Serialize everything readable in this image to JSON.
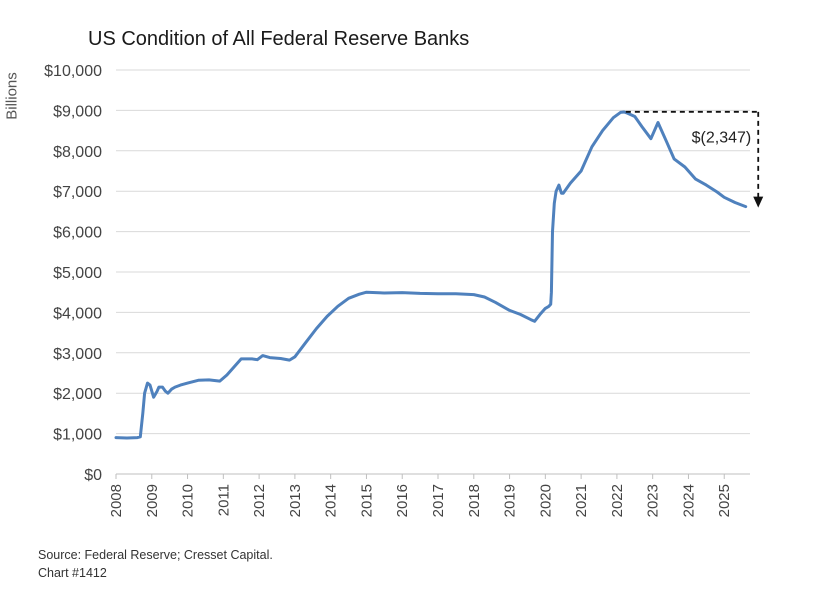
{
  "chart_data": {
    "type": "line",
    "title": "US Condition of All Federal Reserve Banks",
    "ylabel": "Billions",
    "xlabel": "",
    "ylim": [
      0,
      10000
    ],
    "xlim": [
      2008,
      2025.7
    ],
    "grid": true,
    "y_ticks": [
      0,
      1000,
      2000,
      3000,
      4000,
      5000,
      6000,
      7000,
      8000,
      9000,
      10000
    ],
    "y_tick_labels": [
      "$0",
      "$1,000",
      "$2,000",
      "$3,000",
      "$4,000",
      "$5,000",
      "$6,000",
      "$7,000",
      "$8,000",
      "$9,000",
      "$10,000"
    ],
    "x_ticks": [
      2008,
      2009,
      2010,
      2011,
      2012,
      2013,
      2014,
      2015,
      2016,
      2017,
      2018,
      2019,
      2020,
      2021,
      2022,
      2023,
      2024,
      2025
    ],
    "x_tick_labels": [
      "2008",
      "2009",
      "2010",
      "2011",
      "2012",
      "2013",
      "2014",
      "2015",
      "2016",
      "2017",
      "2018",
      "2019",
      "2020",
      "2021",
      "2022",
      "2023",
      "2024",
      "2025"
    ],
    "series": [
      {
        "color": "#4f81bd",
        "x": [
          2008.0,
          2008.3,
          2008.6,
          2008.68,
          2008.75,
          2008.8,
          2008.88,
          2008.95,
          2009.05,
          2009.15,
          2009.2,
          2009.3,
          2009.38,
          2009.45,
          2009.55,
          2009.65,
          2009.8,
          2010.0,
          2010.3,
          2010.6,
          2010.9,
          2011.1,
          2011.3,
          2011.5,
          2011.8,
          2011.95,
          2012.1,
          2012.3,
          2012.6,
          2012.85,
          2013.0,
          2013.3,
          2013.6,
          2013.9,
          2014.2,
          2014.5,
          2014.8,
          2015.0,
          2015.5,
          2016.0,
          2016.5,
          2017.0,
          2017.5,
          2018.0,
          2018.3,
          2018.6,
          2019.0,
          2019.3,
          2019.6,
          2019.7,
          2019.85,
          2020.0,
          2020.1,
          2020.15,
          2020.17,
          2020.2,
          2020.25,
          2020.3,
          2020.38,
          2020.45,
          2020.5,
          2020.7,
          2021.0,
          2021.3,
          2021.6,
          2021.9,
          2022.1,
          2022.2,
          2022.3,
          2022.5,
          2022.7,
          2022.95,
          2023.15,
          2023.2,
          2023.25,
          2023.4,
          2023.6,
          2023.9,
          2024.2,
          2024.5,
          2024.8,
          2025.0,
          2025.3,
          2025.6
        ],
        "y": [
          900,
          890,
          900,
          920,
          1500,
          2000,
          2250,
          2200,
          1900,
          2050,
          2150,
          2150,
          2050,
          2000,
          2100,
          2150,
          2200,
          2250,
          2320,
          2330,
          2300,
          2450,
          2650,
          2850,
          2850,
          2830,
          2930,
          2880,
          2860,
          2820,
          2900,
          3250,
          3600,
          3900,
          4150,
          4350,
          4450,
          4500,
          4480,
          4490,
          4470,
          4460,
          4460,
          4440,
          4380,
          4250,
          4050,
          3950,
          3820,
          3780,
          3950,
          4100,
          4150,
          4200,
          4500,
          6000,
          6700,
          7000,
          7150,
          6950,
          6950,
          7200,
          7500,
          8100,
          8500,
          8820,
          8950,
          8960,
          8930,
          8850,
          8600,
          8300,
          8700,
          8600,
          8500,
          8200,
          7800,
          7600,
          7300,
          7150,
          6980,
          6850,
          6720,
          6620
        ]
      }
    ],
    "annotations": [
      {
        "text": "$(2,347)",
        "from": {
          "x": 2022.25,
          "y": 8965
        },
        "to": {
          "x": 2025.95,
          "y": 6618
        }
      }
    ],
    "source_line_1": "Source: Federal Reserve; Cresset Capital.",
    "source_line_2": "Chart #1412"
  }
}
